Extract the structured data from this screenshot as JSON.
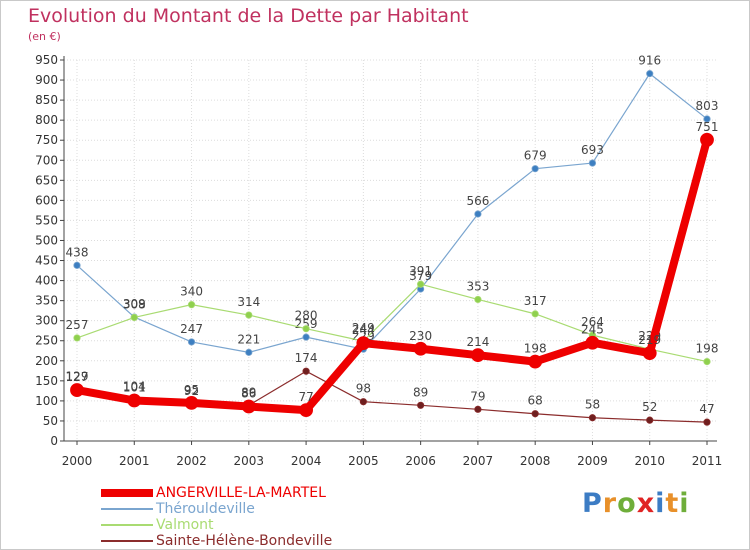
{
  "chart_data": {
    "type": "line",
    "title": "Evolution du Montant de la Dette par Habitant",
    "subtitle": "(en €)",
    "x": [
      "2000",
      "2001",
      "2002",
      "2003",
      "2004",
      "2005",
      "2006",
      "2007",
      "2008",
      "2009",
      "2010",
      "2011"
    ],
    "ylim": [
      0,
      950
    ],
    "yticks": [
      0,
      50,
      100,
      150,
      200,
      250,
      300,
      350,
      400,
      450,
      500,
      550,
      600,
      650,
      700,
      750,
      800,
      850,
      900,
      950
    ],
    "grid": true,
    "legend_position": "bottom-left",
    "series": [
      {
        "name": "Thérouldeville",
        "color": "#7aa5cf",
        "marker_color": "#3d7fc1",
        "values": [
          438,
          309,
          247,
          221,
          259,
          229,
          379,
          566,
          679,
          693,
          916,
          803
        ]
      },
      {
        "name": "Valmont",
        "color": "#a9db72",
        "marker_color": "#8fd04e",
        "values": [
          257,
          308,
          340,
          314,
          280,
          249,
          391,
          353,
          317,
          264,
          229,
          198
        ]
      },
      {
        "name": "Sainte-Hélène-Bondeville",
        "color": "#8b2c2c",
        "marker_color": "#6f1f1f",
        "values": [
          129,
          104,
          92,
          89,
          174,
          98,
          89,
          79,
          68,
          58,
          52,
          47
        ]
      },
      {
        "name": "ANGERVILLE-LA-MARTEL",
        "color": "#ee0000",
        "marker_color": "#ee0000",
        "values": [
          127,
          101,
          95,
          86,
          77,
          244,
          230,
          214,
          198,
          245,
          219,
          751
        ]
      }
    ]
  },
  "legend": {
    "items": [
      {
        "label": "ANGERVILLE-LA-MARTEL",
        "color": "#ee0000"
      },
      {
        "label": "Thérouldeville",
        "color": "#7aa5cf"
      },
      {
        "label": "Valmont",
        "color": "#a9db72"
      },
      {
        "label": "Sainte-Hélène-Bondeville",
        "color": "#8b2c2c"
      }
    ]
  },
  "logo": {
    "text": "Proxiti",
    "letters": [
      {
        "ch": "P",
        "color": "#3c7cc4"
      },
      {
        "ch": "r",
        "color": "#e8902a"
      },
      {
        "ch": "o",
        "color": "#6fae3a"
      },
      {
        "ch": "x",
        "color": "#e02424"
      },
      {
        "ch": "i",
        "color": "#3c7cc4"
      },
      {
        "ch": "t",
        "color": "#e8902a"
      },
      {
        "ch": "i",
        "color": "#6fae3a"
      }
    ]
  }
}
